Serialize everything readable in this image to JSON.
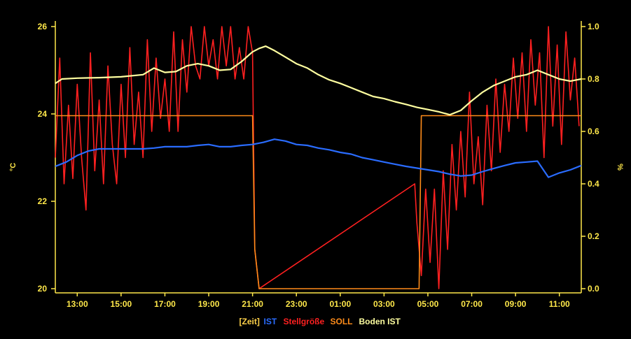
{
  "chart_data": {
    "type": "line",
    "ylabel_left": "°C",
    "ylabel_right": "%",
    "ylim_left": [
      20,
      26
    ],
    "ylim_right": [
      0.0,
      1.0
    ],
    "yticks_left": [
      "26",
      "24",
      "22",
      "20"
    ],
    "yticks_right": [
      "1.0",
      "0.8",
      "0.6",
      "0.4",
      "0.2",
      "0.0"
    ],
    "xlim": [
      12,
      36
    ],
    "xticks": [
      "13:00",
      "15:00",
      "17:00",
      "19:00",
      "21:00",
      "23:00",
      "01:00",
      "03:00",
      "05:00",
      "07:00",
      "09:00",
      "11:00"
    ],
    "xtick_values": [
      13,
      15,
      17,
      19,
      21,
      23,
      25,
      27,
      29,
      31,
      33,
      35
    ],
    "legend_position": "bottom",
    "legend": [
      {
        "label": "[Zeit]",
        "color": "#ffd24a"
      },
      {
        "label": "IST",
        "color": "#2a6cff"
      },
      {
        "label": "Stellgröße",
        "color": "#ff2020"
      },
      {
        "label": "SOLL",
        "color": "#ff8c1a"
      },
      {
        "label": "Boden IST",
        "color": "#ffffa0"
      }
    ],
    "series": [
      {
        "name": "IST",
        "axis": "left",
        "color": "#2a6cff",
        "x": [
          12.0,
          12.5,
          13.0,
          13.5,
          14.0,
          14.5,
          15.0,
          15.5,
          16.0,
          16.5,
          17.0,
          17.5,
          18.0,
          18.5,
          19.0,
          19.5,
          20.0,
          20.5,
          21.0,
          21.5,
          22.0,
          22.5,
          23.0,
          23.5,
          24.0,
          24.5,
          25.0,
          25.5,
          26.0,
          26.5,
          27.0,
          27.5,
          28.0,
          28.5,
          29.0,
          29.5,
          30.0,
          30.5,
          31.0,
          31.5,
          32.0,
          32.5,
          33.0,
          33.5,
          34.0,
          34.5,
          35.0,
          35.5,
          36.0
        ],
        "y": [
          22.8,
          22.9,
          23.05,
          23.15,
          23.2,
          23.2,
          23.2,
          23.2,
          23.2,
          23.22,
          23.25,
          23.25,
          23.25,
          23.28,
          23.3,
          23.25,
          23.25,
          23.28,
          23.3,
          23.35,
          23.42,
          23.38,
          23.3,
          23.28,
          23.22,
          23.18,
          23.12,
          23.08,
          23.0,
          22.95,
          22.9,
          22.85,
          22.8,
          22.76,
          22.72,
          22.68,
          22.62,
          22.58,
          22.6,
          22.68,
          22.75,
          22.82,
          22.88,
          22.9,
          22.92,
          22.55,
          22.65,
          22.72,
          22.82
        ]
      },
      {
        "name": "Boden IST",
        "axis": "left",
        "color": "#ffffa0",
        "x": [
          12.0,
          12.3,
          13.0,
          14.0,
          15.0,
          16.0,
          16.5,
          17.0,
          17.5,
          18.0,
          18.5,
          19.0,
          19.5,
          20.0,
          20.5,
          21.0,
          21.3,
          21.6,
          22.0,
          22.5,
          23.0,
          23.5,
          24.0,
          24.5,
          25.0,
          25.5,
          26.0,
          26.5,
          27.0,
          27.5,
          28.0,
          28.5,
          29.0,
          29.5,
          30.0,
          30.5,
          31.0,
          31.5,
          32.0,
          32.5,
          33.0,
          33.5,
          34.0,
          34.5,
          35.0,
          35.5,
          36.0
        ],
        "y": [
          24.7,
          24.8,
          24.82,
          24.83,
          24.85,
          24.9,
          25.05,
          24.95,
          24.97,
          25.1,
          25.15,
          25.1,
          25.0,
          25.02,
          25.2,
          25.42,
          25.5,
          25.55,
          25.45,
          25.3,
          25.15,
          25.05,
          24.9,
          24.78,
          24.7,
          24.6,
          24.5,
          24.4,
          24.35,
          24.28,
          24.22,
          24.15,
          24.1,
          24.05,
          23.98,
          24.08,
          24.3,
          24.5,
          24.65,
          24.75,
          24.85,
          24.9,
          25.0,
          24.9,
          24.8,
          24.75,
          24.8
        ]
      },
      {
        "name": "SOLL",
        "axis": "right",
        "color": "#ff8c1a",
        "x": [
          12.0,
          21.0,
          21.1,
          21.3,
          25.0,
          27.0,
          28.6,
          28.7,
          30.0,
          33.0,
          36.0
        ],
        "y": [
          0.66,
          0.66,
          0.15,
          0.0,
          0.0,
          0.0,
          0.0,
          0.66,
          0.66,
          0.66,
          0.66
        ]
      },
      {
        "name": "Stellgröße",
        "axis": "right",
        "color": "#ff2020",
        "x": [
          12.0,
          12.2,
          12.4,
          12.6,
          12.8,
          13.0,
          13.2,
          13.4,
          13.6,
          13.8,
          14.0,
          14.2,
          14.4,
          14.6,
          14.8,
          15.0,
          15.2,
          15.4,
          15.6,
          15.8,
          16.0,
          16.2,
          16.4,
          16.6,
          16.8,
          17.0,
          17.2,
          17.4,
          17.6,
          17.8,
          18.0,
          18.2,
          18.4,
          18.6,
          18.8,
          19.0,
          19.2,
          19.4,
          19.6,
          19.8,
          20.0,
          20.2,
          20.4,
          20.6,
          20.8,
          21.0,
          21.1,
          21.3,
          28.4,
          28.5,
          28.7,
          28.9,
          29.1,
          29.3,
          29.5,
          29.7,
          29.9,
          30.1,
          30.3,
          30.5,
          30.7,
          30.9,
          31.1,
          31.3,
          31.5,
          31.7,
          31.9,
          32.1,
          32.3,
          32.5,
          32.7,
          32.9,
          33.1,
          33.3,
          33.5,
          33.7,
          33.9,
          34.1,
          34.3,
          34.5,
          34.7,
          34.9,
          35.1,
          35.3,
          35.5,
          35.7,
          35.9
        ],
        "y": [
          0.5,
          0.88,
          0.4,
          0.7,
          0.42,
          0.78,
          0.5,
          0.3,
          0.9,
          0.45,
          0.72,
          0.4,
          0.85,
          0.55,
          0.4,
          0.78,
          0.5,
          0.92,
          0.55,
          0.75,
          0.5,
          0.95,
          0.6,
          0.88,
          0.65,
          0.8,
          0.6,
          0.98,
          0.6,
          0.95,
          0.75,
          1.0,
          0.85,
          0.8,
          1.0,
          0.85,
          0.95,
          0.8,
          1.0,
          0.85,
          1.0,
          0.8,
          0.92,
          0.8,
          1.0,
          0.9,
          0.15,
          0.0,
          0.4,
          0.25,
          0.05,
          0.38,
          0.1,
          0.38,
          0.0,
          0.45,
          0.15,
          0.55,
          0.3,
          0.6,
          0.35,
          0.75,
          0.4,
          0.58,
          0.32,
          0.7,
          0.45,
          0.8,
          0.52,
          0.78,
          0.6,
          0.88,
          0.65,
          0.9,
          0.6,
          0.95,
          0.7,
          0.9,
          0.5,
          1.0,
          0.62,
          0.93,
          0.55,
          0.98,
          0.72,
          0.88,
          0.62
        ]
      }
    ]
  }
}
